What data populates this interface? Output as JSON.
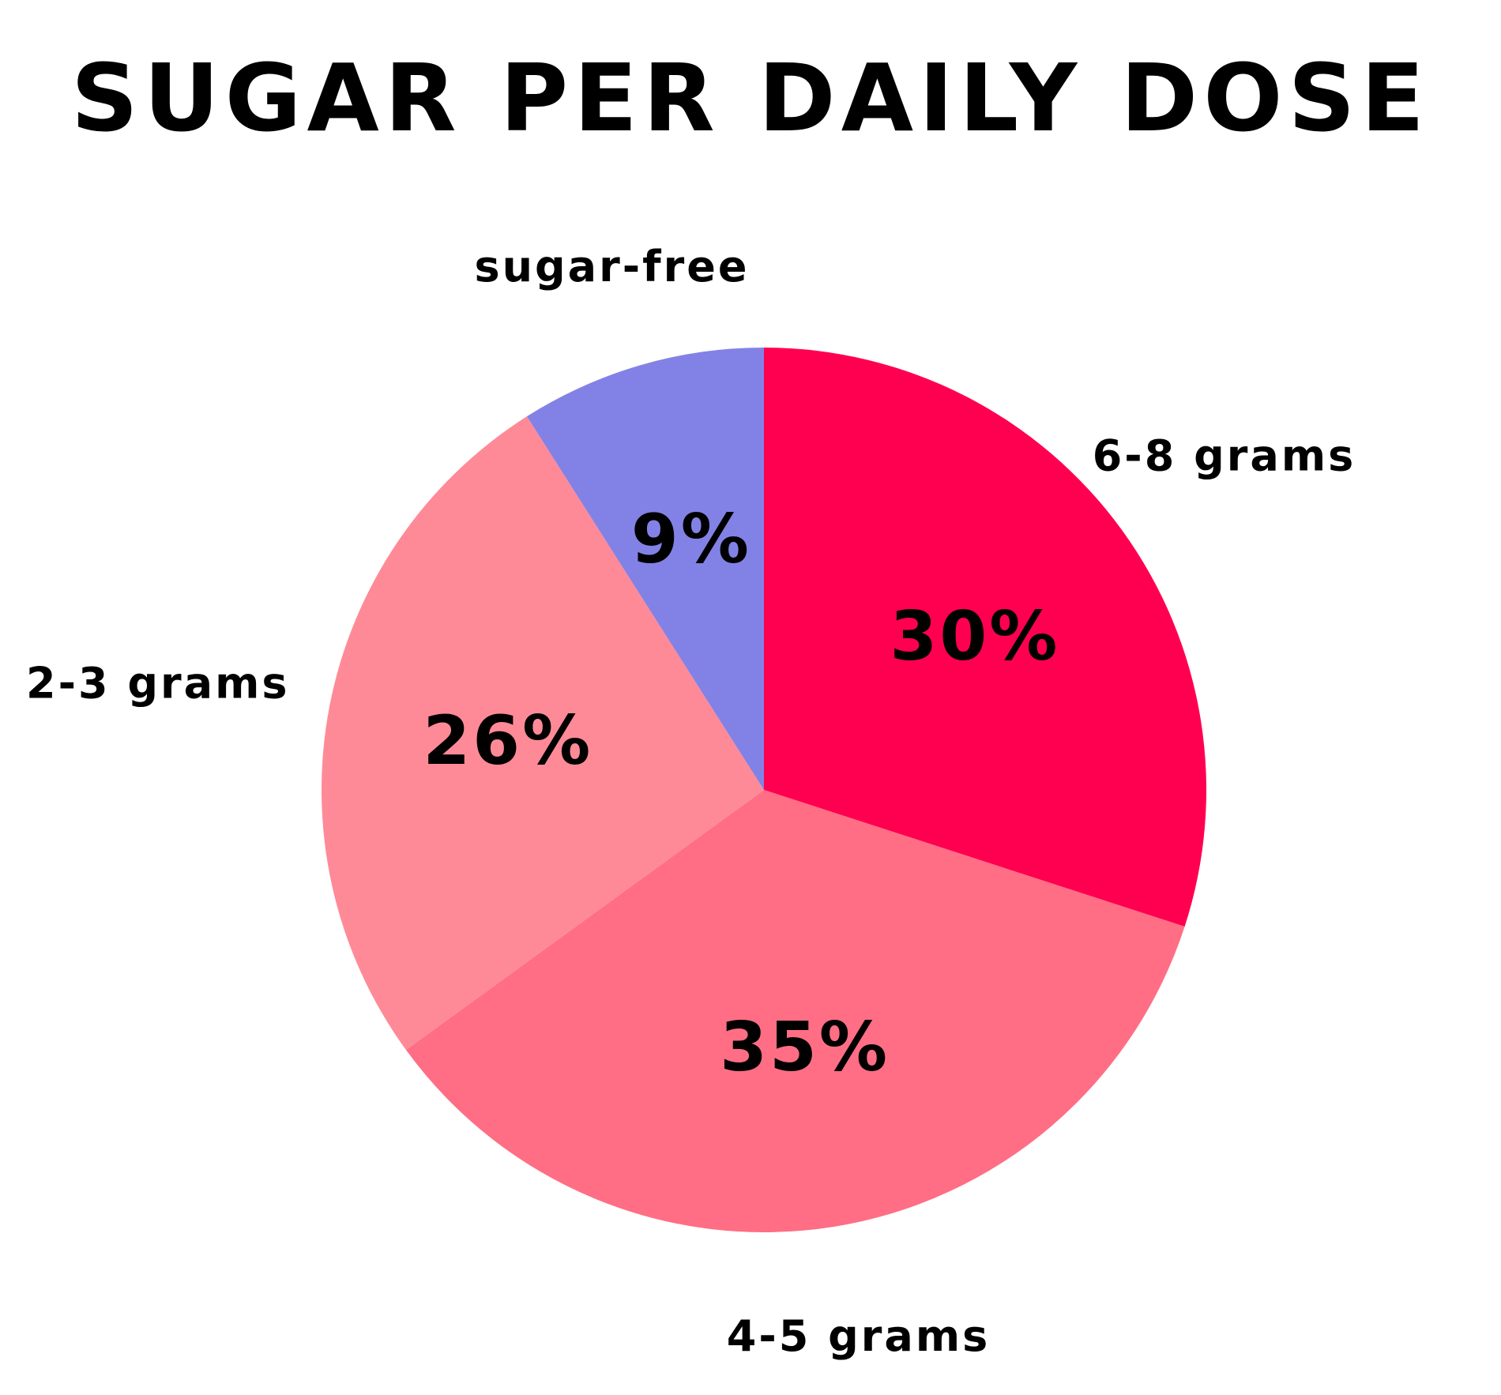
{
  "chart_data": {
    "type": "pie",
    "title": "SUGAR PER DAILY DOSE",
    "slices": [
      {
        "label": "6-8 grams",
        "value": 30,
        "value_label": "30%",
        "color": "#FF0051"
      },
      {
        "label": "4-5 grams",
        "value": 35,
        "value_label": "35%",
        "color": "#FF6E84"
      },
      {
        "label": "2-3 grams",
        "value": 26,
        "value_label": "26%",
        "color": "#FF8A97"
      },
      {
        "label": "sugar-free",
        "value": 9,
        "value_label": "9%",
        "color": "#8282E6"
      }
    ],
    "start_angle": "12 o'clock",
    "direction": "clockwise",
    "legend": "none"
  }
}
